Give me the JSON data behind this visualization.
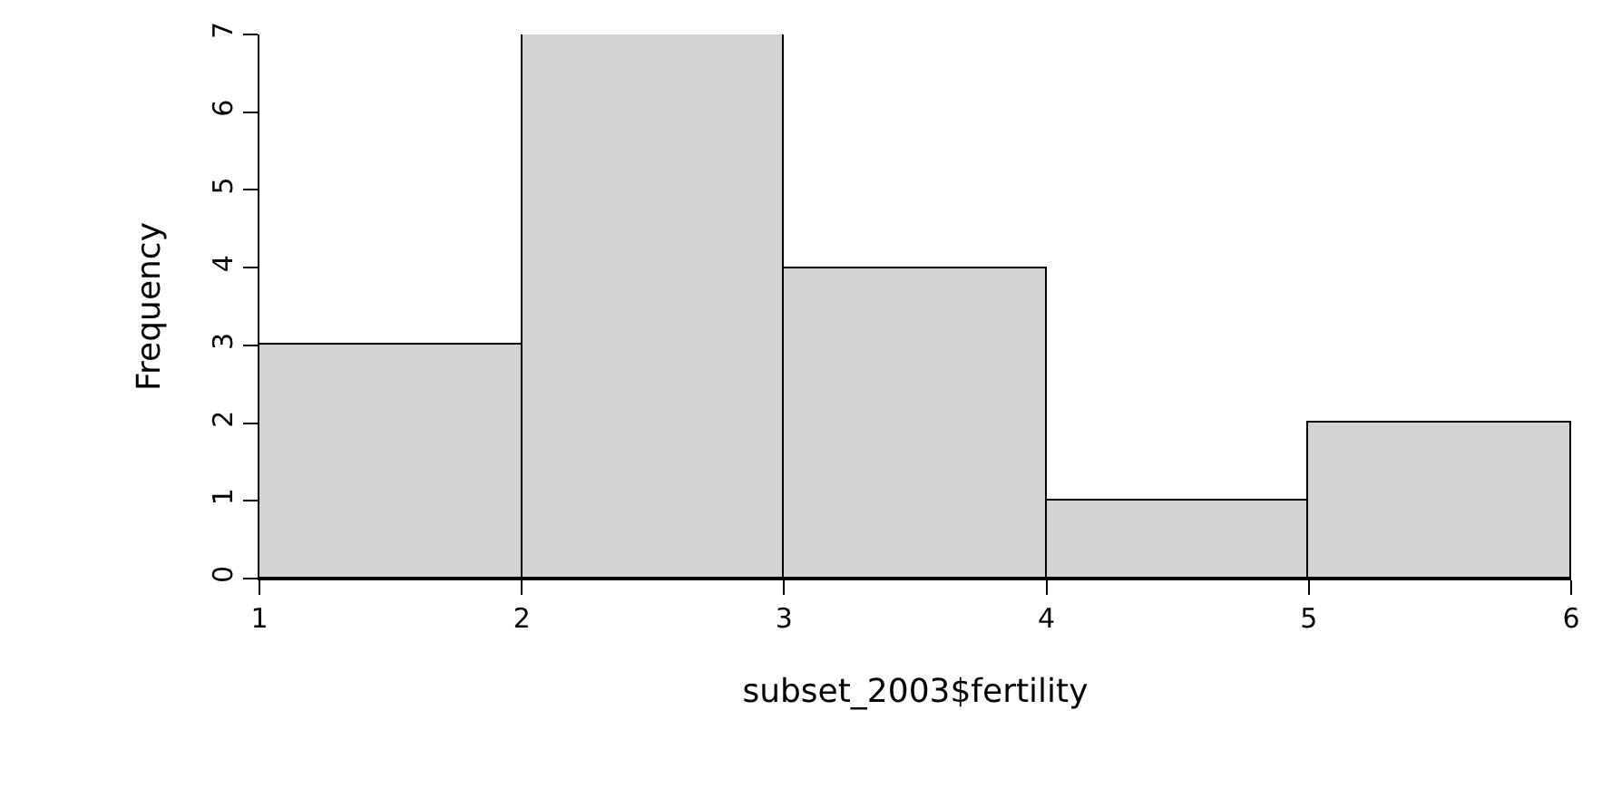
{
  "chart_data": {
    "type": "histogram",
    "xlabel": "subset_2003$fertility",
    "ylabel": "Frequency",
    "bins": [
      1,
      2,
      3,
      4,
      5,
      6
    ],
    "values": [
      3,
      7,
      4,
      1,
      2
    ],
    "color": "#d3d3d3",
    "xlim": [
      1,
      6
    ],
    "ylim": [
      0,
      7
    ],
    "xticks": [
      1,
      2,
      3,
      4,
      5,
      6
    ],
    "yticks": [
      0,
      1,
      2,
      3,
      4,
      5,
      6,
      7
    ]
  }
}
